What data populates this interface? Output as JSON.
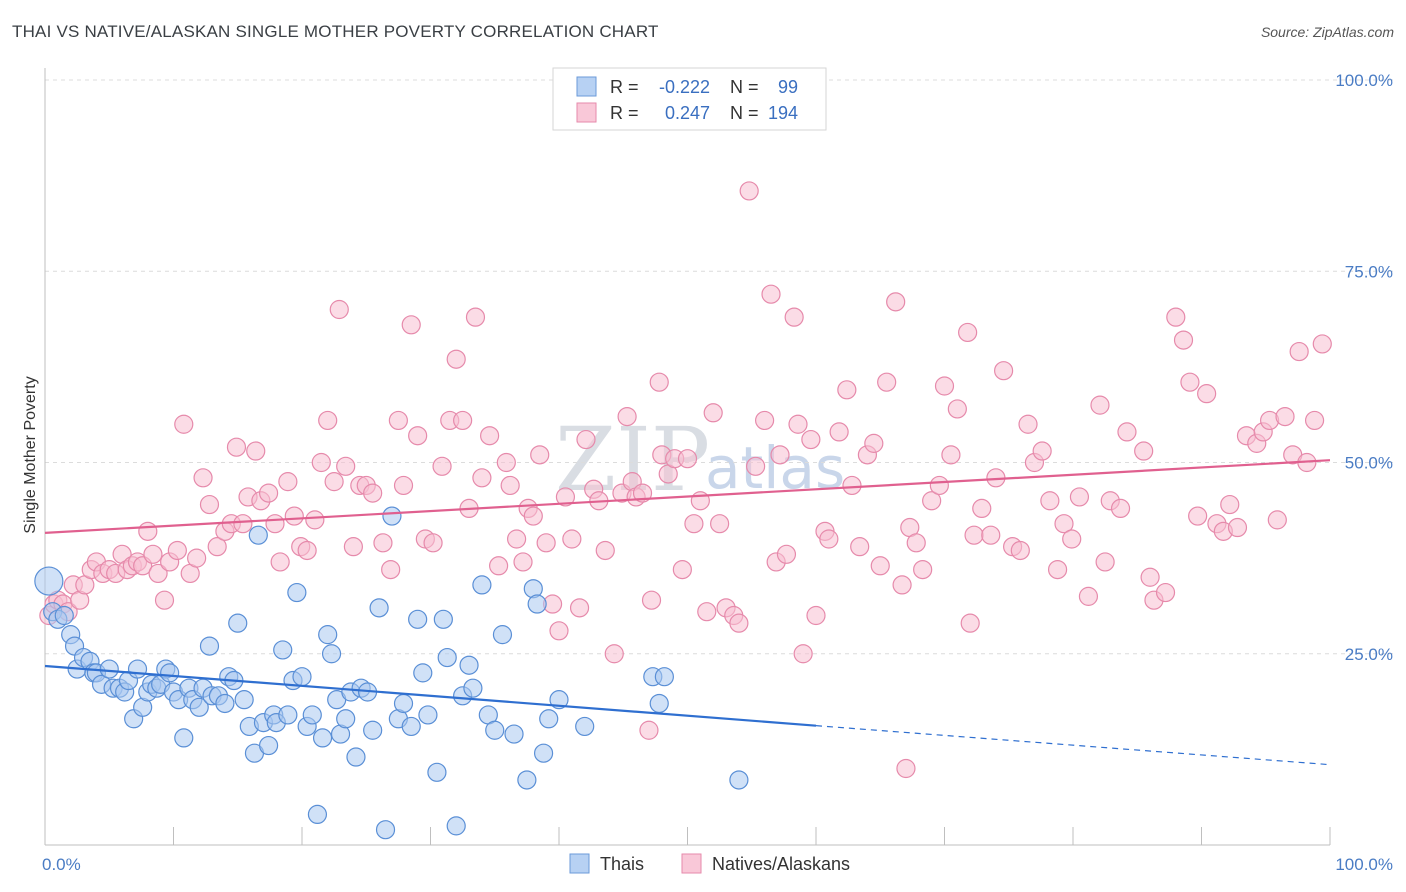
{
  "header": {
    "title": "THAI VS NATIVE/ALASKAN SINGLE MOTHER POVERTY CORRELATION CHART",
    "source": "Source: ZipAtlas.com"
  },
  "watermark": {
    "zip": "ZIP",
    "atlas": "atlas"
  },
  "legend_top": {
    "rows": [
      {
        "r_label": "R =",
        "r_value": "-0.222",
        "n_label": "N =",
        "n_value": "99"
      },
      {
        "r_label": "R =",
        "r_value": "0.247",
        "n_label": "N =",
        "n_value": "194"
      }
    ]
  },
  "legend_bottom": {
    "items": [
      "Thais",
      "Natives/Alaskans"
    ]
  },
  "colors": {
    "thai_fill": "#a9c8f0",
    "thai_stroke": "#5a8fd6",
    "thai_line": "#2f6fd0",
    "native_fill": "#f7bfd2",
    "native_stroke": "#e68aab",
    "native_line": "#e0608f",
    "grid": "#dcdcdc",
    "axis_text": "#4a7cc4"
  },
  "chart_data": {
    "type": "scatter",
    "title": "THAI VS NATIVE/ALASKAN SINGLE MOTHER POVERTY CORRELATION CHART",
    "xlabel": "",
    "ylabel": "Single Mother Poverty",
    "xlim": [
      0,
      100
    ],
    "ylim": [
      0,
      100
    ],
    "x_tick_labels": [
      "0.0%",
      "100.0%"
    ],
    "y_tick_labels": [
      "25.0%",
      "50.0%",
      "75.0%",
      "100.0%"
    ],
    "y_ticks": [
      25,
      50,
      75,
      100
    ],
    "grid": true,
    "legend": "top-center",
    "series": [
      {
        "name": "Thais",
        "R": -0.222,
        "N": 99,
        "trend": {
          "x0": 0,
          "y0": 23.4,
          "x1": 60,
          "y1": 15.6,
          "dashed_to_x": 100,
          "dashed_y1": 10.5
        },
        "points": [
          [
            0.3,
            34.5
          ],
          [
            0.6,
            30.5
          ],
          [
            1,
            29.5
          ],
          [
            1.5,
            30
          ],
          [
            2,
            27.5
          ],
          [
            2.3,
            26
          ],
          [
            2.5,
            23
          ],
          [
            3,
            24.5
          ],
          [
            3.5,
            24
          ],
          [
            3.8,
            22.5
          ],
          [
            4,
            22.5
          ],
          [
            4.4,
            21
          ],
          [
            5,
            23
          ],
          [
            5.3,
            20.5
          ],
          [
            5.8,
            20.5
          ],
          [
            6.2,
            20
          ],
          [
            6.5,
            21.5
          ],
          [
            6.9,
            16.5
          ],
          [
            7.2,
            23
          ],
          [
            7.6,
            18
          ],
          [
            8,
            20
          ],
          [
            8.3,
            21
          ],
          [
            8.7,
            20.5
          ],
          [
            9,
            21
          ],
          [
            9.4,
            23
          ],
          [
            9.7,
            22.5
          ],
          [
            10,
            20
          ],
          [
            10.4,
            19
          ],
          [
            10.8,
            14
          ],
          [
            11.2,
            20.5
          ],
          [
            11.5,
            19
          ],
          [
            12,
            18
          ],
          [
            12.3,
            20.5
          ],
          [
            12.8,
            26
          ],
          [
            13,
            19.5
          ],
          [
            13.5,
            19.5
          ],
          [
            14,
            18.5
          ],
          [
            14.3,
            22
          ],
          [
            14.7,
            21.5
          ],
          [
            15,
            29
          ],
          [
            15.5,
            19
          ],
          [
            15.9,
            15.5
          ],
          [
            16.3,
            12
          ],
          [
            16.6,
            40.5
          ],
          [
            17,
            16
          ],
          [
            17.4,
            13
          ],
          [
            17.8,
            17
          ],
          [
            18,
            16
          ],
          [
            18.5,
            25.5
          ],
          [
            18.9,
            17
          ],
          [
            19.3,
            21.5
          ],
          [
            19.6,
            33
          ],
          [
            20,
            22
          ],
          [
            20.4,
            15.5
          ],
          [
            20.8,
            17
          ],
          [
            21.2,
            4
          ],
          [
            21.6,
            14
          ],
          [
            22,
            27.5
          ],
          [
            22.3,
            25
          ],
          [
            22.7,
            19
          ],
          [
            23,
            14.5
          ],
          [
            23.4,
            16.5
          ],
          [
            23.8,
            20
          ],
          [
            24.2,
            11.5
          ],
          [
            24.6,
            20.5
          ],
          [
            25.1,
            20
          ],
          [
            25.5,
            15
          ],
          [
            26,
            31
          ],
          [
            26.5,
            2
          ],
          [
            27,
            43
          ],
          [
            27.5,
            16.5
          ],
          [
            27.9,
            18.5
          ],
          [
            28.5,
            15.5
          ],
          [
            29,
            29.5
          ],
          [
            29.4,
            22.5
          ],
          [
            29.8,
            17
          ],
          [
            30.5,
            9.5
          ],
          [
            31,
            29.5
          ],
          [
            31.3,
            24.5
          ],
          [
            32,
            2.5
          ],
          [
            32.5,
            19.5
          ],
          [
            33,
            23.5
          ],
          [
            33.3,
            20.5
          ],
          [
            34,
            34
          ],
          [
            34.5,
            17
          ],
          [
            35,
            15
          ],
          [
            35.6,
            27.5
          ],
          [
            36.5,
            14.5
          ],
          [
            37.5,
            8.5
          ],
          [
            38,
            33.5
          ],
          [
            38.3,
            31.5
          ],
          [
            38.8,
            12
          ],
          [
            39.2,
            16.5
          ],
          [
            40,
            19
          ],
          [
            42,
            15.5
          ],
          [
            47.3,
            22
          ],
          [
            47.8,
            18.5
          ],
          [
            48.2,
            22
          ],
          [
            54,
            8.5
          ]
        ]
      },
      {
        "name": "Natives/Alaskans",
        "R": 0.247,
        "N": 194,
        "trend": {
          "x0": 0,
          "y0": 40.8,
          "x1": 100,
          "y1": 50.3
        },
        "points": [
          [
            0.3,
            30
          ],
          [
            0.7,
            31.5
          ],
          [
            1,
            32
          ],
          [
            1.4,
            31.5
          ],
          [
            1.8,
            30.5
          ],
          [
            2.2,
            34
          ],
          [
            2.7,
            32
          ],
          [
            3.1,
            34
          ],
          [
            3.6,
            36
          ],
          [
            4,
            37
          ],
          [
            4.5,
            35.5
          ],
          [
            5,
            36
          ],
          [
            5.5,
            35.5
          ],
          [
            6,
            38
          ],
          [
            6.4,
            36
          ],
          [
            6.8,
            36.5
          ],
          [
            7.2,
            37
          ],
          [
            7.6,
            36.5
          ],
          [
            8,
            41
          ],
          [
            8.4,
            38
          ],
          [
            8.8,
            35.5
          ],
          [
            9.3,
            32
          ],
          [
            9.7,
            37
          ],
          [
            10.3,
            38.5
          ],
          [
            10.8,
            55
          ],
          [
            11.3,
            35.5
          ],
          [
            11.8,
            37.5
          ],
          [
            12.3,
            48
          ],
          [
            12.8,
            44.5
          ],
          [
            13.4,
            39
          ],
          [
            14,
            41
          ],
          [
            14.5,
            42
          ],
          [
            14.9,
            52
          ],
          [
            15.4,
            42
          ],
          [
            15.8,
            45.5
          ],
          [
            16.4,
            51.5
          ],
          [
            16.8,
            45
          ],
          [
            17.4,
            46
          ],
          [
            17.9,
            42
          ],
          [
            18.3,
            37
          ],
          [
            18.9,
            47.5
          ],
          [
            19.4,
            43
          ],
          [
            19.9,
            39
          ],
          [
            20.4,
            38.5
          ],
          [
            21,
            42.5
          ],
          [
            21.5,
            50
          ],
          [
            22,
            55.5
          ],
          [
            22.5,
            47.5
          ],
          [
            22.9,
            70
          ],
          [
            23.4,
            49.5
          ],
          [
            24,
            39
          ],
          [
            24.5,
            47
          ],
          [
            25,
            47
          ],
          [
            25.5,
            46
          ],
          [
            26.3,
            39.5
          ],
          [
            26.9,
            36
          ],
          [
            27.5,
            55.5
          ],
          [
            27.9,
            47
          ],
          [
            28.5,
            68
          ],
          [
            29,
            53.5
          ],
          [
            29.6,
            40
          ],
          [
            30.2,
            39.5
          ],
          [
            30.9,
            49.5
          ],
          [
            31.5,
            55.5
          ],
          [
            32,
            63.5
          ],
          [
            32.5,
            55.5
          ],
          [
            33,
            44
          ],
          [
            33.5,
            69
          ],
          [
            34,
            48
          ],
          [
            34.6,
            53.5
          ],
          [
            35.3,
            36.5
          ],
          [
            35.9,
            50
          ],
          [
            36.2,
            47
          ],
          [
            36.7,
            40
          ],
          [
            37.2,
            37
          ],
          [
            37.6,
            44
          ],
          [
            38,
            43
          ],
          [
            38.5,
            51
          ],
          [
            39,
            39.5
          ],
          [
            39.5,
            31.5
          ],
          [
            40,
            28
          ],
          [
            40.5,
            45.5
          ],
          [
            41,
            40
          ],
          [
            41.6,
            31
          ],
          [
            42.1,
            53
          ],
          [
            42.7,
            46.5
          ],
          [
            43.1,
            45
          ],
          [
            43.6,
            38.5
          ],
          [
            44.3,
            25
          ],
          [
            44.9,
            46
          ],
          [
            45.3,
            56
          ],
          [
            45.7,
            47.5
          ],
          [
            46,
            45.5
          ],
          [
            46.5,
            46
          ],
          [
            47.2,
            32
          ],
          [
            47.8,
            60.5
          ],
          [
            48,
            51
          ],
          [
            48.5,
            48.5
          ],
          [
            49,
            50.5
          ],
          [
            49.6,
            36
          ],
          [
            50,
            50.5
          ],
          [
            50.5,
            42
          ],
          [
            51,
            45
          ],
          [
            51.5,
            30.5
          ],
          [
            52,
            56.5
          ],
          [
            52.5,
            42
          ],
          [
            53,
            31
          ],
          [
            53.6,
            30
          ],
          [
            54,
            29
          ],
          [
            54.8,
            85.5
          ],
          [
            55.3,
            49.5
          ],
          [
            56,
            55.5
          ],
          [
            56.5,
            72
          ],
          [
            56.9,
            37
          ],
          [
            57.2,
            51
          ],
          [
            57.7,
            38
          ],
          [
            58.3,
            69
          ],
          [
            58.6,
            55
          ],
          [
            59,
            25
          ],
          [
            59.6,
            53
          ],
          [
            60,
            30
          ],
          [
            60.7,
            41
          ],
          [
            61,
            40
          ],
          [
            61.8,
            54
          ],
          [
            62.4,
            59.5
          ],
          [
            62.8,
            47
          ],
          [
            63.4,
            39
          ],
          [
            64,
            51
          ],
          [
            64.5,
            52.5
          ],
          [
            65,
            36.5
          ],
          [
            65.5,
            60.5
          ],
          [
            66.2,
            71
          ],
          [
            66.7,
            34
          ],
          [
            67.3,
            41.5
          ],
          [
            67.8,
            39.5
          ],
          [
            68.3,
            36
          ],
          [
            69,
            45
          ],
          [
            69.6,
            47
          ],
          [
            70,
            60
          ],
          [
            70.5,
            51
          ],
          [
            71,
            57
          ],
          [
            71.8,
            67
          ],
          [
            72.3,
            40.5
          ],
          [
            72.9,
            44
          ],
          [
            73.6,
            40.5
          ],
          [
            74,
            48
          ],
          [
            74.6,
            62
          ],
          [
            75.3,
            39
          ],
          [
            75.9,
            38.5
          ],
          [
            76.5,
            55
          ],
          [
            77,
            50
          ],
          [
            77.6,
            51.5
          ],
          [
            78.2,
            45
          ],
          [
            78.8,
            36
          ],
          [
            79.3,
            42
          ],
          [
            79.9,
            40
          ],
          [
            80.5,
            45.5
          ],
          [
            81.2,
            32.5
          ],
          [
            82.1,
            57.5
          ],
          [
            82.9,
            45
          ],
          [
            83.7,
            44
          ],
          [
            84.2,
            54
          ],
          [
            85.5,
            51.5
          ],
          [
            86.3,
            32
          ],
          [
            87.2,
            33
          ],
          [
            88,
            69
          ],
          [
            88.6,
            66
          ],
          [
            89.1,
            60.5
          ],
          [
            89.7,
            43
          ],
          [
            90.4,
            59
          ],
          [
            91.2,
            42
          ],
          [
            91.7,
            41
          ],
          [
            92.2,
            44.5
          ],
          [
            92.8,
            41.5
          ],
          [
            93.5,
            53.5
          ],
          [
            94.3,
            52.5
          ],
          [
            94.8,
            54
          ],
          [
            95.3,
            55.5
          ],
          [
            95.9,
            42.5
          ],
          [
            96.5,
            56
          ],
          [
            97.1,
            51
          ],
          [
            97.6,
            64.5
          ],
          [
            98.2,
            50
          ],
          [
            98.8,
            55.5
          ],
          [
            99.4,
            65.5
          ],
          [
            82.5,
            37
          ],
          [
            86,
            35
          ],
          [
            72,
            29
          ],
          [
            47,
            15
          ],
          [
            67,
            10
          ]
        ]
      }
    ]
  }
}
